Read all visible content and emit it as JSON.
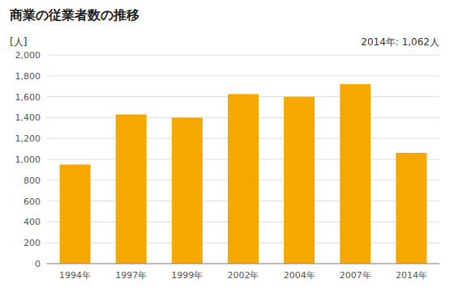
{
  "chart_data": {
    "type": "bar",
    "title": "商業の従業者数の推移",
    "ylabel": "[人]",
    "annotation": "2014年: 1,062人",
    "categories": [
      "1994年",
      "1997年",
      "1999年",
      "2002年",
      "2004年",
      "2007年",
      "2014年"
    ],
    "values": [
      950,
      1430,
      1400,
      1625,
      1600,
      1720,
      1062
    ],
    "color": "#F5A800",
    "ylim": [
      0,
      2000
    ],
    "yticks": [
      0,
      200,
      400,
      600,
      800,
      {
        "value": 1000,
        "label": "1,000"
      },
      {
        "value": 1200,
        "label": "1,200"
      },
      {
        "value": 1400,
        "label": "1,400"
      },
      {
        "value": 1600,
        "label": "1,600"
      },
      {
        "value": 1800,
        "label": "1,800"
      },
      {
        "value": 2000,
        "label": "2,000"
      }
    ],
    "grid": true
  }
}
